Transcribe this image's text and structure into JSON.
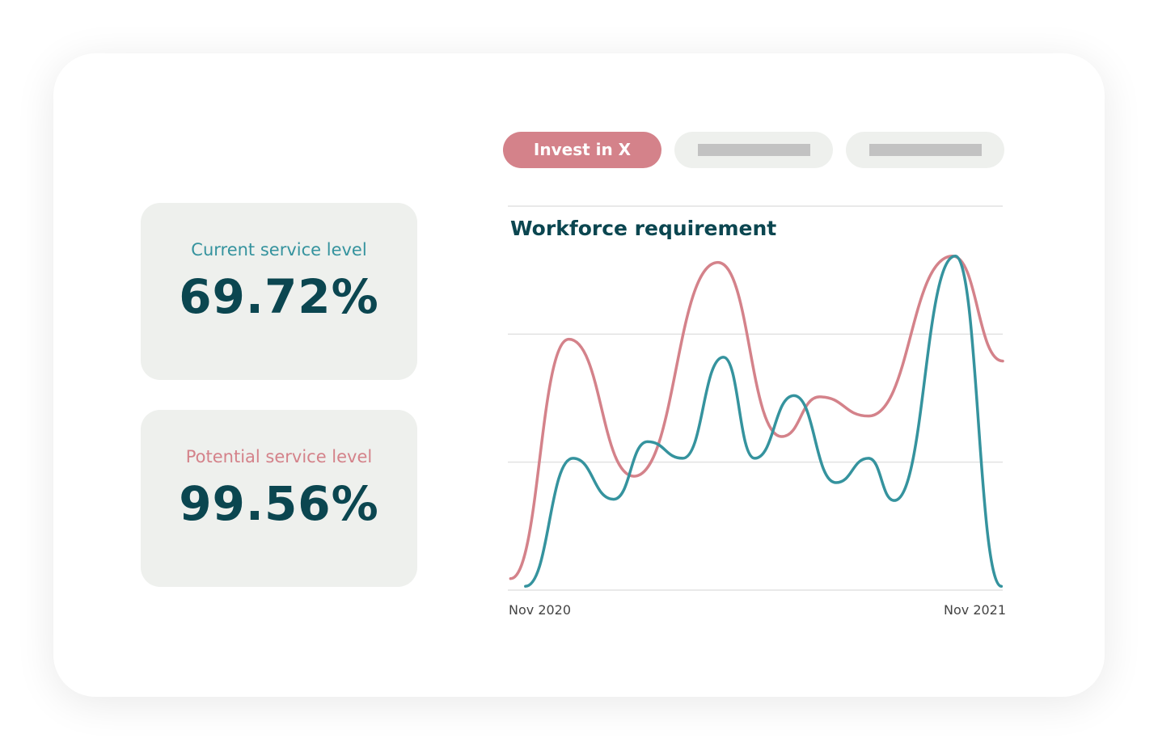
{
  "stats": {
    "current": {
      "label": "Current service level",
      "value": "69.72%",
      "color": "#35939e"
    },
    "potential": {
      "label": "Potential service level",
      "value": "99.56%",
      "color": "#d4828a"
    }
  },
  "tabs": [
    {
      "label": "Invest in X",
      "active": true
    },
    {
      "label": "",
      "active": false
    },
    {
      "label": "",
      "active": false
    }
  ],
  "colors": {
    "accent_pink": "#d4828a",
    "accent_teal": "#35939e",
    "dark": "#0b4650",
    "panel": "#eef0ed"
  },
  "chart_data": {
    "type": "line",
    "title": "Workforce requirement",
    "x_tick_labels": [
      "Nov 2020",
      "Nov 2021"
    ],
    "xlim": [
      "2020-11-01",
      "2021-11-01"
    ],
    "ylim": [
      0,
      3
    ],
    "grid": true,
    "smooth": true,
    "series": [
      {
        "color": "#d4828a",
        "points": [
          [
            "2020-11-03",
            0.09
          ],
          [
            "2020-12-16",
            1.96
          ],
          [
            "2021-02-02",
            0.89
          ],
          [
            "2021-04-05",
            2.56
          ],
          [
            "2021-05-22",
            1.2
          ],
          [
            "2021-06-19",
            1.51
          ],
          [
            "2021-07-25",
            1.36
          ],
          [
            "2021-09-25",
            2.61
          ],
          [
            "2021-11-01",
            1.79
          ]
        ]
      },
      {
        "color": "#35939e",
        "points": [
          [
            "2020-11-14",
            0.03
          ],
          [
            "2020-12-19",
            1.03
          ],
          [
            "2021-01-18",
            0.71
          ],
          [
            "2021-02-12",
            1.16
          ],
          [
            "2021-03-10",
            1.03
          ],
          [
            "2021-04-09",
            1.82
          ],
          [
            "2021-05-02",
            1.03
          ],
          [
            "2021-05-31",
            1.52
          ],
          [
            "2021-07-01",
            0.84
          ],
          [
            "2021-07-25",
            1.03
          ],
          [
            "2021-08-13",
            0.7
          ],
          [
            "2021-09-27",
            2.61
          ],
          [
            "2021-10-31",
            0.03
          ]
        ]
      }
    ]
  }
}
